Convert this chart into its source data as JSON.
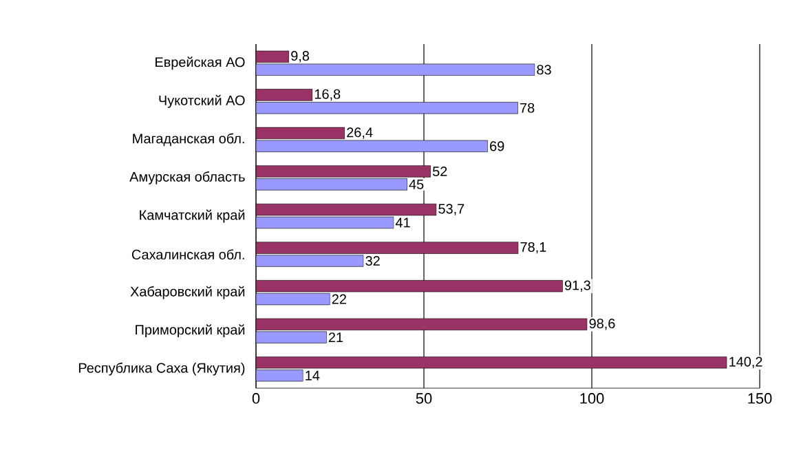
{
  "chart_data": {
    "type": "bar",
    "orientation": "horizontal",
    "categories": [
      "Еврейская АО",
      "Чукотский АО",
      "Магаданская обл.",
      "Амурская область",
      "Камчатский край",
      "Сахалинская обл.",
      "Хабаровский край",
      "Приморский край",
      "Республика Саха (Якутия)"
    ],
    "series": [
      {
        "color": "#993366",
        "values": [
          9.8,
          16.8,
          26.4,
          52,
          53.7,
          78.1,
          91.3,
          98.6,
          140.2
        ],
        "value_labels": [
          "9,8",
          "16,8",
          "26,4",
          "52",
          "53,7",
          "78,1",
          "91,3",
          "98,6",
          "140,2"
        ]
      },
      {
        "color": "#9999ff",
        "values": [
          83,
          78,
          69,
          45,
          41,
          32,
          22,
          21,
          14
        ],
        "value_labels": [
          "83",
          "78",
          "69",
          "45",
          "41",
          "32",
          "22",
          "21",
          "14"
        ]
      }
    ],
    "xlim": [
      0,
      150
    ],
    "xticks": [
      0,
      50,
      100,
      150
    ],
    "grid": "x"
  }
}
